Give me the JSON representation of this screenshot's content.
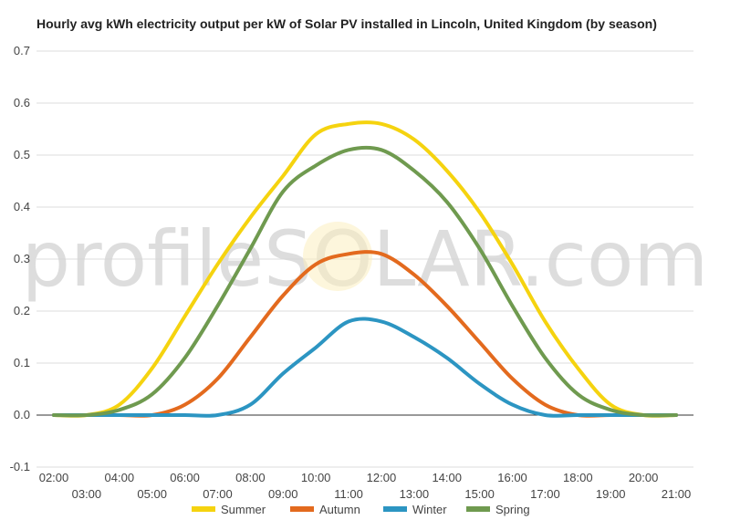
{
  "chart_data": {
    "type": "line",
    "title": "Hourly avg kWh electricity output per kW of Solar PV installed in Lincoln, United Kingdom (by season)",
    "xlabel": "",
    "ylabel": "",
    "watermark": "profileSOLAR.com",
    "x": [
      "02:00",
      "03:00",
      "04:00",
      "05:00",
      "06:00",
      "07:00",
      "08:00",
      "09:00",
      "10:00",
      "11:00",
      "12:00",
      "13:00",
      "14:00",
      "15:00",
      "16:00",
      "17:00",
      "18:00",
      "19:00",
      "20:00",
      "21:00"
    ],
    "ylim": [
      -0.1,
      0.7
    ],
    "yticks": [
      "-0.1",
      "0.0",
      "0.1",
      "0.2",
      "0.3",
      "0.4",
      "0.5",
      "0.6",
      "0.7"
    ],
    "grid": true,
    "legend_position": "bottom",
    "series": [
      {
        "name": "Summer",
        "color": "#f5d30f",
        "values": [
          0,
          0,
          0.02,
          0.09,
          0.19,
          0.29,
          0.38,
          0.46,
          0.54,
          0.56,
          0.56,
          0.53,
          0.47,
          0.39,
          0.29,
          0.18,
          0.09,
          0.02,
          0,
          0
        ]
      },
      {
        "name": "Autumn",
        "color": "#e36a1e",
        "values": [
          0,
          0,
          0,
          0,
          0.02,
          0.07,
          0.15,
          0.23,
          0.29,
          0.31,
          0.31,
          0.27,
          0.21,
          0.14,
          0.07,
          0.02,
          0,
          0,
          0,
          0
        ]
      },
      {
        "name": "Winter",
        "color": "#2c95c2",
        "values": [
          0,
          0,
          0,
          0,
          0,
          0,
          0.02,
          0.08,
          0.13,
          0.18,
          0.18,
          0.15,
          0.11,
          0.06,
          0.02,
          0,
          0,
          0,
          0,
          0
        ]
      },
      {
        "name": "Spring",
        "color": "#6f9a4f",
        "values": [
          0,
          0,
          0.01,
          0.04,
          0.11,
          0.21,
          0.32,
          0.43,
          0.48,
          0.51,
          0.51,
          0.47,
          0.41,
          0.32,
          0.21,
          0.11,
          0.04,
          0.01,
          0,
          0
        ]
      }
    ]
  }
}
